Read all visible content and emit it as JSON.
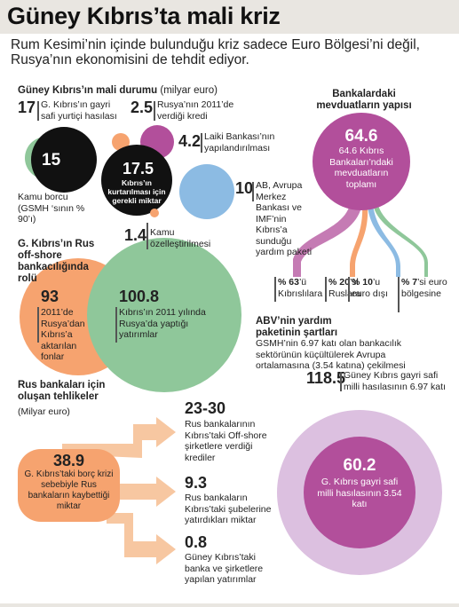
{
  "title": "Güney Kıbrıs’ta mali kriz",
  "subtitle": "Rum Kesimi’nin içinde bulunduğu kriz sadece Euro Bölgesi’ni değil, Rusya’nın ekonomisini de tehdit ediyor.",
  "colors": {
    "header": "#e9e6e1",
    "green": "#8fc79a",
    "orange": "#f6a36f",
    "purple": "#b24f9b",
    "blue": "#8cbbe3",
    "lightpurple": "#dcc0e0",
    "peach": "#f7c7a1"
  },
  "section1": {
    "heading": "Güney Kıbrıs’ın mali durumu",
    "heading_unit": "(milyar euro)",
    "gdp_value": "17",
    "gdp_label": "G. Kıbrıs’ın gayri safi yurtiçi hasılası",
    "russia_loan_value": "2.5",
    "russia_loan_label": "Rusya’nın  2011’de verdiği kredi",
    "debt_value": "15",
    "debt_label": "Kamu borcu (GSMH ‘sının % 90’ı)",
    "laiki_value": "4.2",
    "laiki_label": "Laiki Bankası’nın yapılandırılması",
    "rescue_value": "17.5",
    "rescue_label": "Kıbrıs’ın kurtarılması için gerekli miktar",
    "eu_value": "10",
    "eu_label": "AB, Avrupa Merkez Bankası ve IMF’nin Kıbrıs’a sunduğu yardım paketi",
    "privatization_value": "1.4",
    "privatization_label": "Kamu özelleştirilmesi"
  },
  "deposits": {
    "heading": "Bankalardaki mevduatların yapısı",
    "total_value": "64.6",
    "total_label": "64.6 Kıbrıs Bankaları’ndaki mevduatların toplamı",
    "parts": [
      {
        "value": "% 63",
        "label": "’ü Kıbrıslılara"
      },
      {
        "value": "% 20",
        "label": "’si Ruslara"
      },
      {
        "value": "% 10",
        "label": "’u euro dışı"
      },
      {
        "value": "% 7",
        "label": "’si euro bölgesine"
      }
    ]
  },
  "offshore": {
    "heading": "G. Kıbrıs’ın Rus off-shore bankacılığında rolü",
    "left_value": "93",
    "left_label": "2011’de Rusya’dan Kıbrıs’a aktarılan fonlar",
    "right_value": "100.8",
    "right_label": "Kıbrıs’ın 2011 yılında Rusya’da yaptığı yatırımlar"
  },
  "abv": {
    "heading": "ABV’nin yardım paketinin şartları",
    "text": "GSMH’nin 6.97 katı olan bankacılık sektörünün küçültülerek Avrupa ortalamasına (3.54 katına) çekilmesi",
    "outer_value": "118.5",
    "outer_label": "Güney Kıbrıs gayri safi milli hasılasının 6.97 katı",
    "inner_value": "60.2",
    "inner_label": "G. Kıbrıs gayri safi milli hasılasının 3.54 katı"
  },
  "risks": {
    "heading": "Rus bankaları için oluşan tehlikeler",
    "unit": "(Milyar euro)",
    "main_value": "38.9",
    "main_label": "G. Kıbrıs’taki borç krizi sebebiyle Rus bankaların kaybettiği miktar",
    "items": [
      {
        "value": "23-30",
        "label": "Rus bankalarının Kıbrıs’taki Off-shore şirketlere verdiği krediler"
      },
      {
        "value": "9.3",
        "label": "Rus bankaların Kıbrıs’taki şubelerine yatırdıkları miktar"
      },
      {
        "value": "0.8",
        "label": "Güney Kıbrıs’taki banka ve şirketlere yapılan yatırımlar"
      }
    ]
  }
}
